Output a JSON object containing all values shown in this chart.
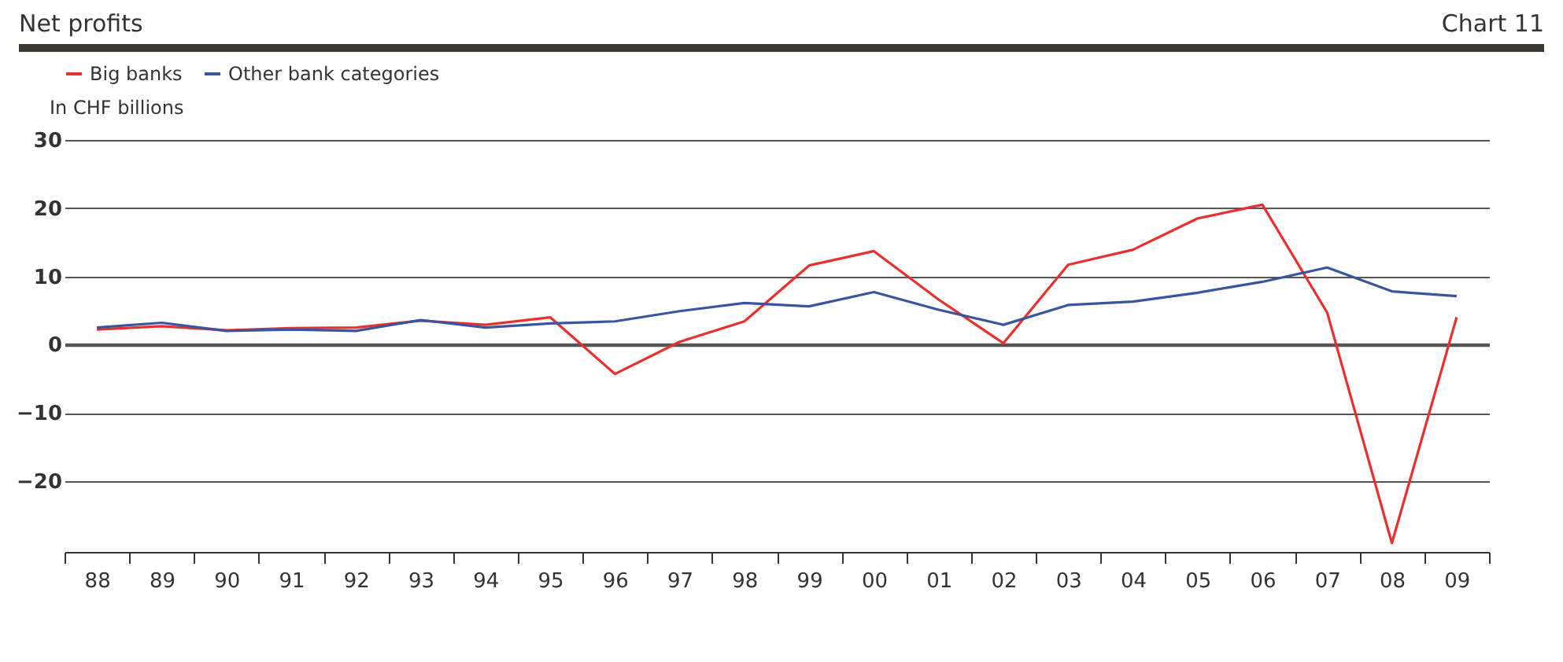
{
  "chart_data": {
    "type": "line",
    "title": "Net profits",
    "annotations": [
      "Chart 11"
    ],
    "ylabel": "In CHF billions",
    "categories": [
      "88",
      "89",
      "90",
      "91",
      "92",
      "93",
      "94",
      "95",
      "96",
      "97",
      "98",
      "99",
      "00",
      "01",
      "02",
      "03",
      "04",
      "05",
      "06",
      "07",
      "08",
      "09"
    ],
    "series": [
      {
        "name": "Big banks",
        "color": "#e8312f",
        "values": [
          2.2,
          2.7,
          2.1,
          2.4,
          2.5,
          3.5,
          2.9,
          4.0,
          -4.3,
          0.4,
          3.4,
          11.6,
          13.7,
          6.6,
          0.2,
          11.7,
          13.9,
          18.5,
          20.5,
          4.7,
          -29.1,
          4.0
        ]
      },
      {
        "name": "Other bank categories",
        "color": "#3a55a0",
        "values": [
          2.5,
          3.2,
          2.0,
          2.2,
          2.0,
          3.6,
          2.5,
          3.1,
          3.4,
          4.9,
          6.1,
          5.6,
          7.7,
          5.1,
          2.9,
          5.8,
          6.3,
          7.6,
          9.2,
          11.3,
          7.8,
          7.1
        ]
      }
    ],
    "ylim": [
      -30.4,
      30
    ],
    "yticks": [
      -20,
      -10,
      0,
      10,
      20,
      30
    ],
    "grid": "y",
    "legend": "top left",
    "line_style": "solid"
  }
}
